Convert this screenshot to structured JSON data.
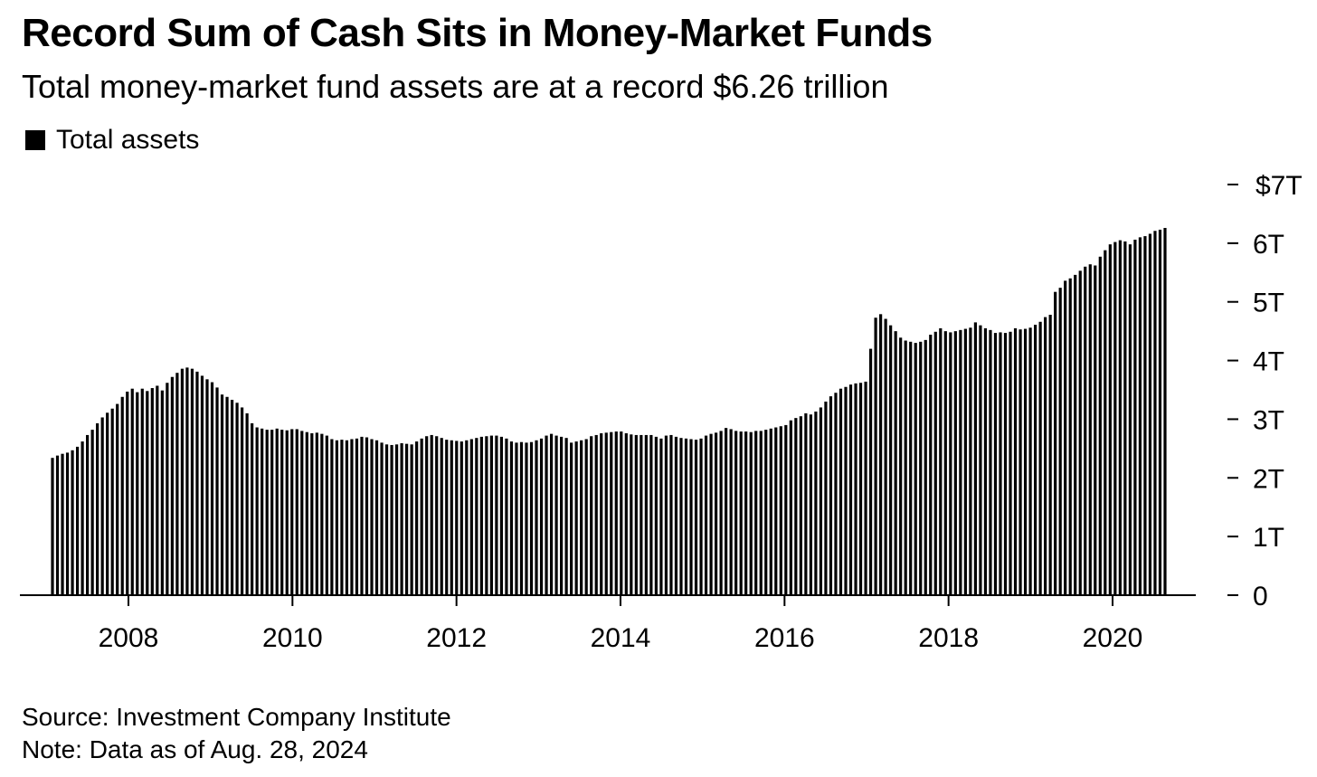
{
  "title": "Record Sum of Cash Sits in Money-Market Funds",
  "subtitle": "Total money-market fund assets are at a record $6.26 trillion",
  "source": "Source: Investment Company Institute",
  "note": "Note: Data as of Aug. 28, 2024",
  "colors": {
    "bar": "#000000",
    "background": "#ffffff",
    "axis": "#000000"
  },
  "chart_data": {
    "type": "bar",
    "legend": [
      "Total assets"
    ],
    "legend_position": "top-left",
    "grid": false,
    "y_axis_position": "right",
    "ylim": [
      0,
      7
    ],
    "y_unit": "trillions of dollars",
    "y_ticks": [
      {
        "value": 0,
        "label": "0"
      },
      {
        "value": 1,
        "label": "1T"
      },
      {
        "value": 2,
        "label": "2T"
      },
      {
        "value": 3,
        "label": "3T"
      },
      {
        "value": 4,
        "label": "4T"
      },
      {
        "value": 5,
        "label": "5T"
      },
      {
        "value": 6,
        "label": "6T"
      },
      {
        "value": 7,
        "label": "$7T"
      }
    ],
    "x_ticks": [
      "2008",
      "2010",
      "2012",
      "2014",
      "2016",
      "2018",
      "2020"
    ],
    "x_start_year": 2007,
    "x_end_year": 2021,
    "series": [
      {
        "name": "Total assets",
        "values": [
          2.34,
          2.38,
          2.41,
          2.43,
          2.47,
          2.53,
          2.62,
          2.73,
          2.82,
          2.93,
          3.03,
          3.11,
          3.18,
          3.26,
          3.38,
          3.47,
          3.52,
          3.46,
          3.52,
          3.48,
          3.53,
          3.57,
          3.49,
          3.62,
          3.72,
          3.79,
          3.86,
          3.88,
          3.86,
          3.81,
          3.74,
          3.68,
          3.63,
          3.54,
          3.42,
          3.38,
          3.33,
          3.28,
          3.2,
          3.1,
          2.93,
          2.86,
          2.84,
          2.82,
          2.82,
          2.84,
          2.82,
          2.81,
          2.83,
          2.83,
          2.8,
          2.78,
          2.76,
          2.77,
          2.75,
          2.72,
          2.66,
          2.64,
          2.65,
          2.64,
          2.66,
          2.67,
          2.7,
          2.69,
          2.66,
          2.64,
          2.6,
          2.57,
          2.56,
          2.57,
          2.59,
          2.58,
          2.57,
          2.62,
          2.67,
          2.71,
          2.73,
          2.71,
          2.68,
          2.65,
          2.64,
          2.63,
          2.62,
          2.64,
          2.66,
          2.68,
          2.7,
          2.71,
          2.72,
          2.72,
          2.7,
          2.67,
          2.62,
          2.6,
          2.61,
          2.6,
          2.61,
          2.64,
          2.67,
          2.72,
          2.75,
          2.72,
          2.7,
          2.68,
          2.6,
          2.62,
          2.64,
          2.66,
          2.71,
          2.73,
          2.76,
          2.77,
          2.78,
          2.79,
          2.79,
          2.76,
          2.74,
          2.73,
          2.73,
          2.73,
          2.73,
          2.7,
          2.67,
          2.72,
          2.73,
          2.7,
          2.68,
          2.67,
          2.66,
          2.65,
          2.67,
          2.72,
          2.75,
          2.77,
          2.8,
          2.85,
          2.83,
          2.8,
          2.79,
          2.79,
          2.78,
          2.8,
          2.8,
          2.82,
          2.84,
          2.86,
          2.88,
          2.9,
          2.98,
          3.02,
          3.05,
          3.1,
          3.08,
          3.13,
          3.2,
          3.3,
          3.39,
          3.45,
          3.52,
          3.55,
          3.59,
          3.61,
          3.62,
          3.64,
          4.2,
          4.73,
          4.79,
          4.71,
          4.6,
          4.5,
          4.39,
          4.34,
          4.32,
          4.3,
          4.32,
          4.35,
          4.44,
          4.49,
          4.55,
          4.5,
          4.48,
          4.5,
          4.52,
          4.54,
          4.56,
          4.65,
          4.6,
          4.55,
          4.52,
          4.47,
          4.48,
          4.47,
          4.49,
          4.55,
          4.53,
          4.54,
          4.56,
          4.61,
          4.66,
          4.74,
          4.78,
          5.17,
          5.24,
          5.36,
          5.4,
          5.46,
          5.53,
          5.6,
          5.64,
          5.62,
          5.77,
          5.88,
          5.98,
          6.02,
          6.05,
          6.03,
          5.98,
          6.06,
          6.1,
          6.12,
          6.16,
          6.21,
          6.23,
          6.26
        ]
      }
    ]
  }
}
